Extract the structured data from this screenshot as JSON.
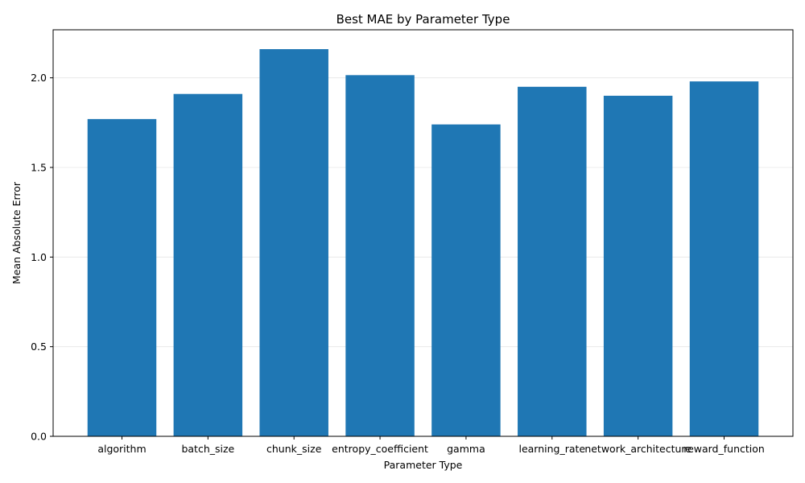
{
  "chart_data": {
    "type": "bar",
    "title": "Best MAE by Parameter Type",
    "xlabel": "Parameter Type",
    "ylabel": "Mean Absolute Error",
    "categories": [
      "algorithm",
      "batch_size",
      "chunk_size",
      "entropy_coefficient",
      "gamma",
      "learning_rate",
      "network_architecture",
      "reward_function"
    ],
    "values": [
      1.77,
      1.91,
      2.16,
      2.015,
      1.74,
      1.95,
      1.9,
      1.98
    ],
    "yticks": [
      0.0,
      0.5,
      1.0,
      1.5,
      2.0
    ],
    "ylim": [
      0,
      2.268
    ],
    "grid": "y",
    "legend": "none",
    "bar_color": "#1f77b4"
  }
}
